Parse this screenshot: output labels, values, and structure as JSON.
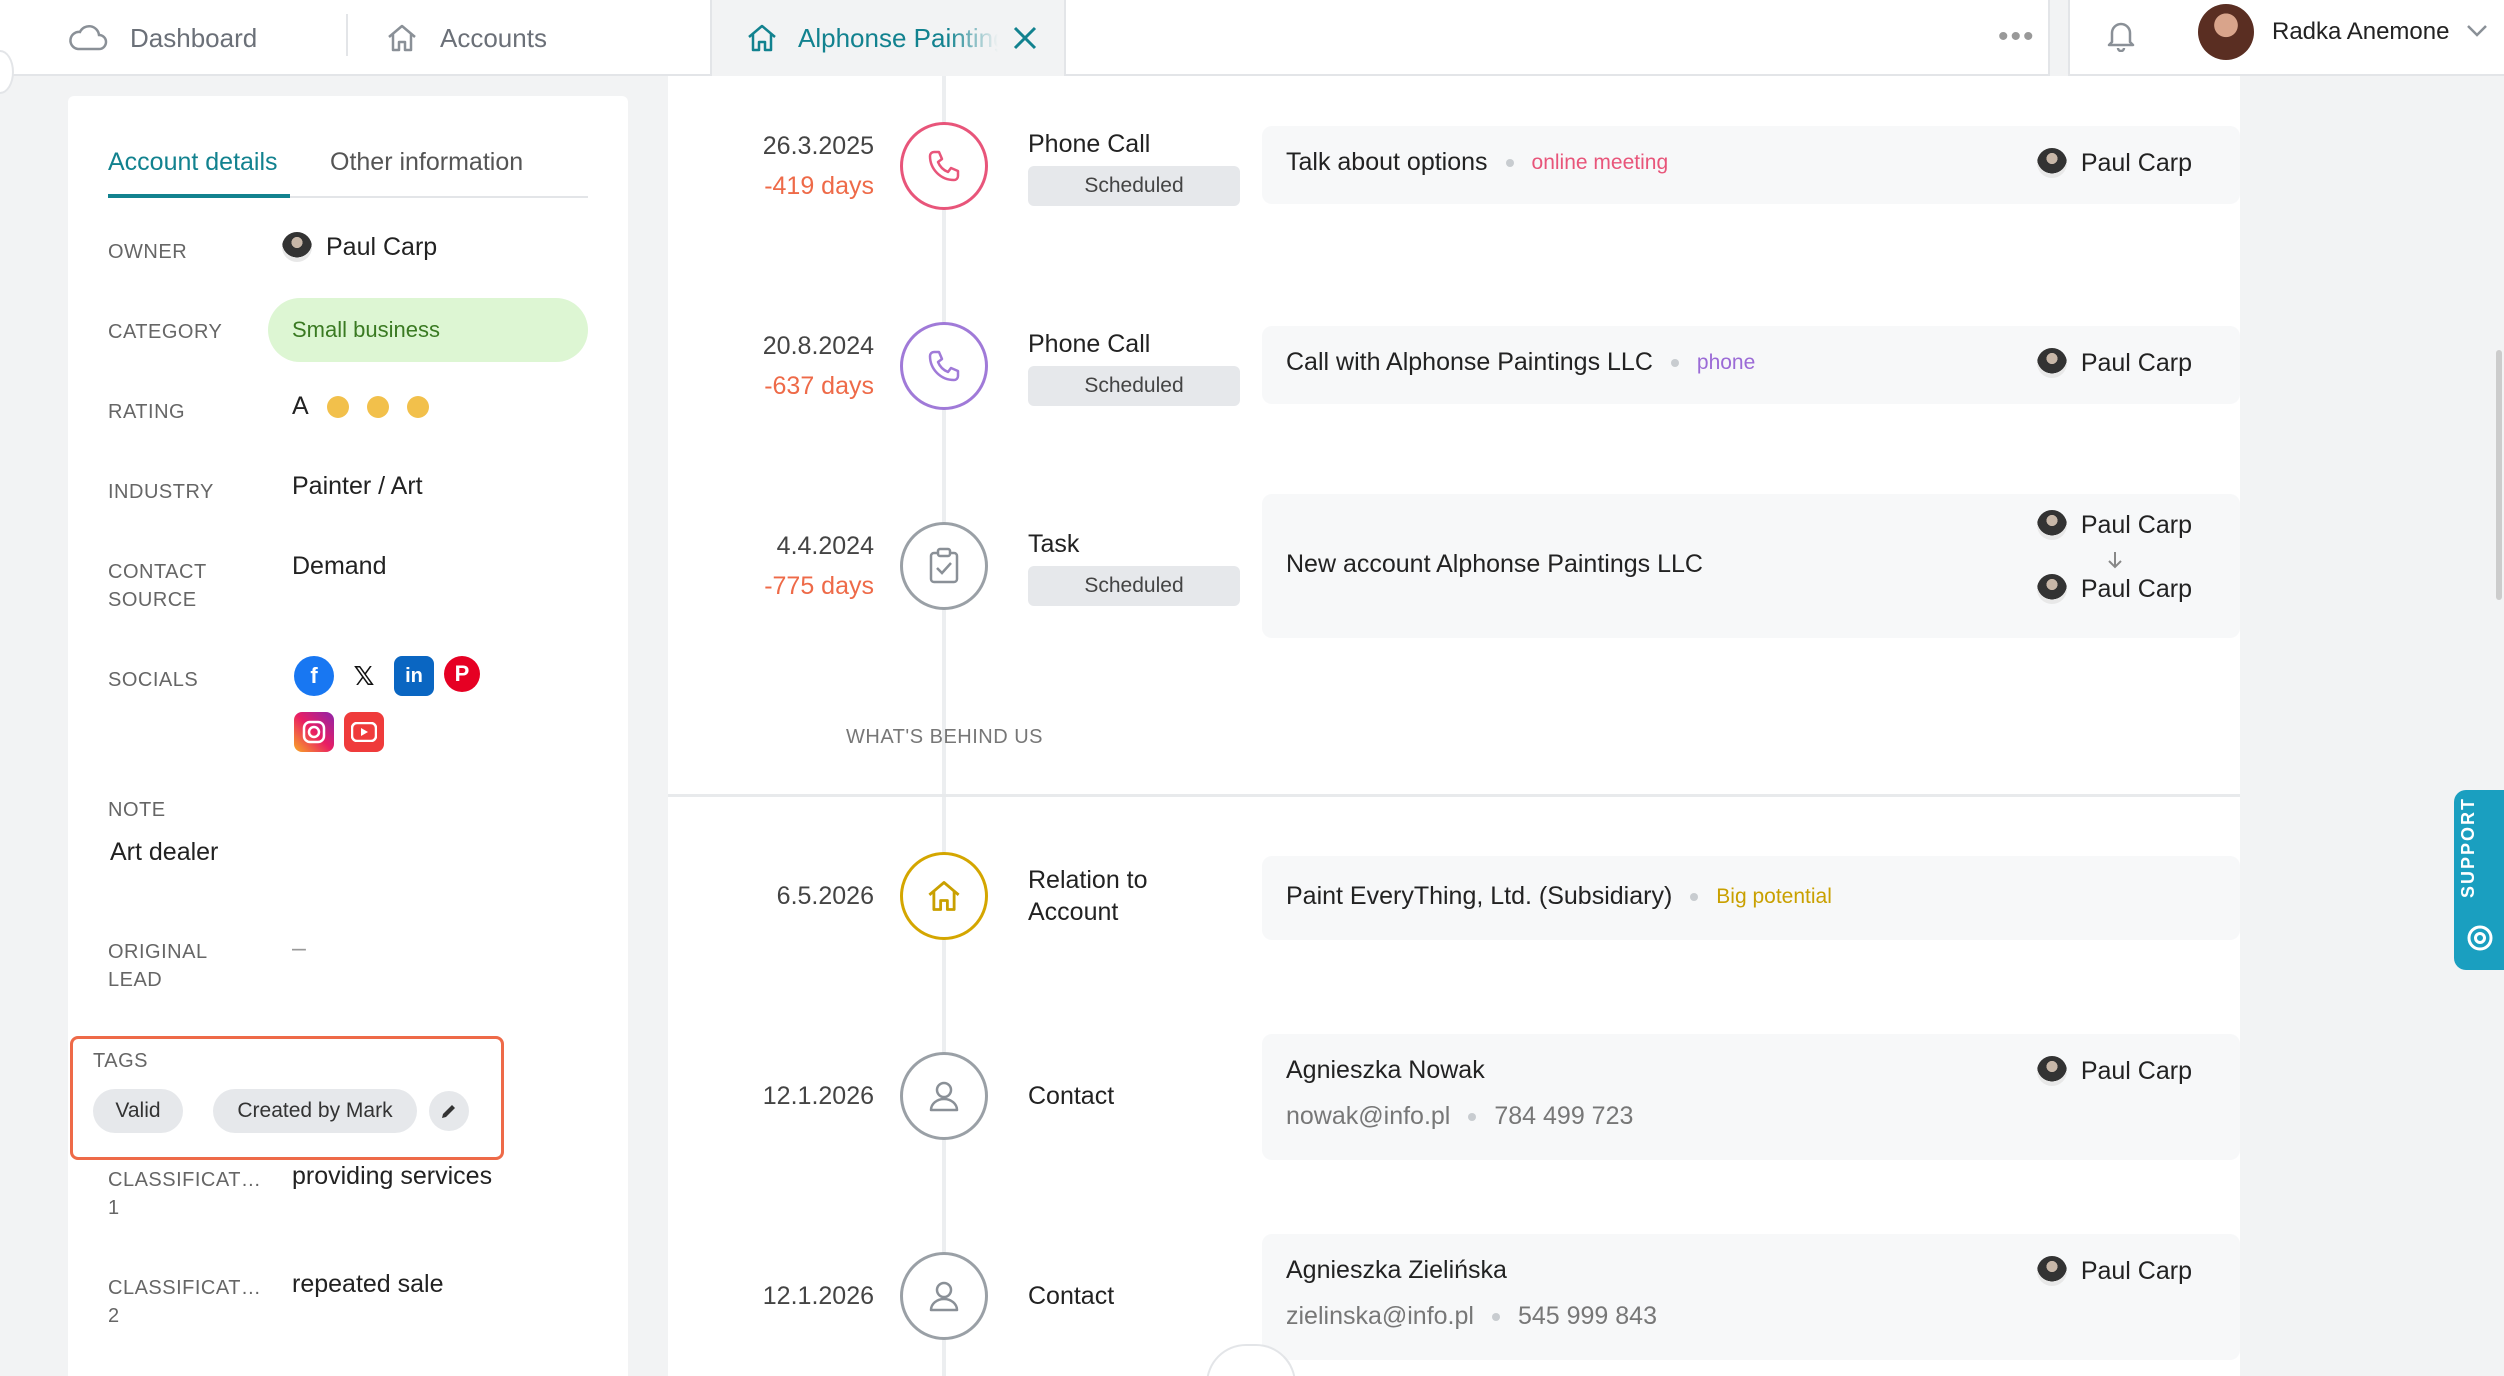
{
  "header": {
    "tabs": [
      {
        "label": "Dashboard",
        "icon": "cloud-icon"
      },
      {
        "label": "Accounts",
        "icon": "home-icon"
      }
    ],
    "active_tab": {
      "label": "Alphonse Paintings LLC",
      "icon": "home-icon"
    },
    "more": "•••",
    "user": {
      "name": "Radka Anemone"
    }
  },
  "account_details": {
    "tabs": {
      "details": "Account details",
      "other": "Other information"
    },
    "owner": {
      "label": "OWNER",
      "value": "Paul Carp"
    },
    "category": {
      "label": "CATEGORY",
      "value": "Small business"
    },
    "rating": {
      "label": "RATING",
      "value": "A",
      "dots": 3
    },
    "industry": {
      "label": "INDUSTRY",
      "value": "Painter / Art"
    },
    "contact_source": {
      "label1": "CONTACT",
      "label2": "SOURCE",
      "value": "Demand"
    },
    "socials": {
      "label": "SOCIALS",
      "items": [
        "facebook",
        "x",
        "linkedin",
        "pinterest",
        "instagram",
        "youtube"
      ]
    },
    "note": {
      "label": "NOTE",
      "value": "Art dealer"
    },
    "original_lead": {
      "label1": "ORIGINAL",
      "label2": "LEAD",
      "value": "–"
    },
    "tags": {
      "label": "TAGS",
      "items": [
        "Valid",
        "Created by Mark"
      ]
    },
    "classification1": {
      "label1": "CLASSIFICAT…",
      "label2": "1",
      "value": "providing services"
    },
    "classification2": {
      "label1": "CLASSIFICAT…",
      "label2": "2",
      "value": "repeated sale"
    }
  },
  "timeline": {
    "upcoming": [
      {
        "date": "26.3.2025",
        "relative": "-419 days",
        "type": "Phone Call",
        "status": "Scheduled",
        "title": "Talk about options",
        "sub": "online meeting",
        "sub_color": "#e8557a",
        "assignee": "Paul Carp",
        "icon_color": "#e8557a"
      },
      {
        "date": "20.8.2024",
        "relative": "-637 days",
        "type": "Phone Call",
        "status": "Scheduled",
        "title": "Call with Alphonse Paintings LLC",
        "sub": "phone",
        "sub_color": "#9b6bd6",
        "assignee": "Paul Carp",
        "icon_color": "#a07ad8"
      },
      {
        "date": "4.4.2024",
        "relative": "-775 days",
        "type": "Task",
        "status": "Scheduled",
        "title": "New account Alphonse Paintings LLC",
        "assignee_from": "Paul Carp",
        "assignee_to": "Paul Carp",
        "icon_color": "#9aa0a6"
      }
    ],
    "section_behind": "WHAT'S BEHIND US",
    "past": [
      {
        "date": "6.5.2026",
        "type1": "Relation to",
        "type2": "Account",
        "title": "Paint EveryThing, Ltd. (Subsidiary)",
        "sub": "Big potential",
        "sub_color": "#c9a000",
        "icon_color": "#d4a600"
      },
      {
        "date": "12.1.2026",
        "type": "Contact",
        "title": "Agnieszka Nowak",
        "email": "nowak@info.pl",
        "phone": "784 499 723",
        "assignee": "Paul Carp"
      },
      {
        "date": "12.1.2026",
        "type": "Contact",
        "title": "Agnieszka Zielińska",
        "email": "zielinska@info.pl",
        "phone": "545 999 843",
        "assignee": "Paul Carp"
      }
    ]
  },
  "support": {
    "label": "SUPPORT"
  },
  "colors": {
    "accent": "#12828f",
    "overdue": "#ee6a48",
    "category_bg": "#ddf6d3",
    "rating_dot": "#f2c04b",
    "support": "#1a9fc0"
  }
}
